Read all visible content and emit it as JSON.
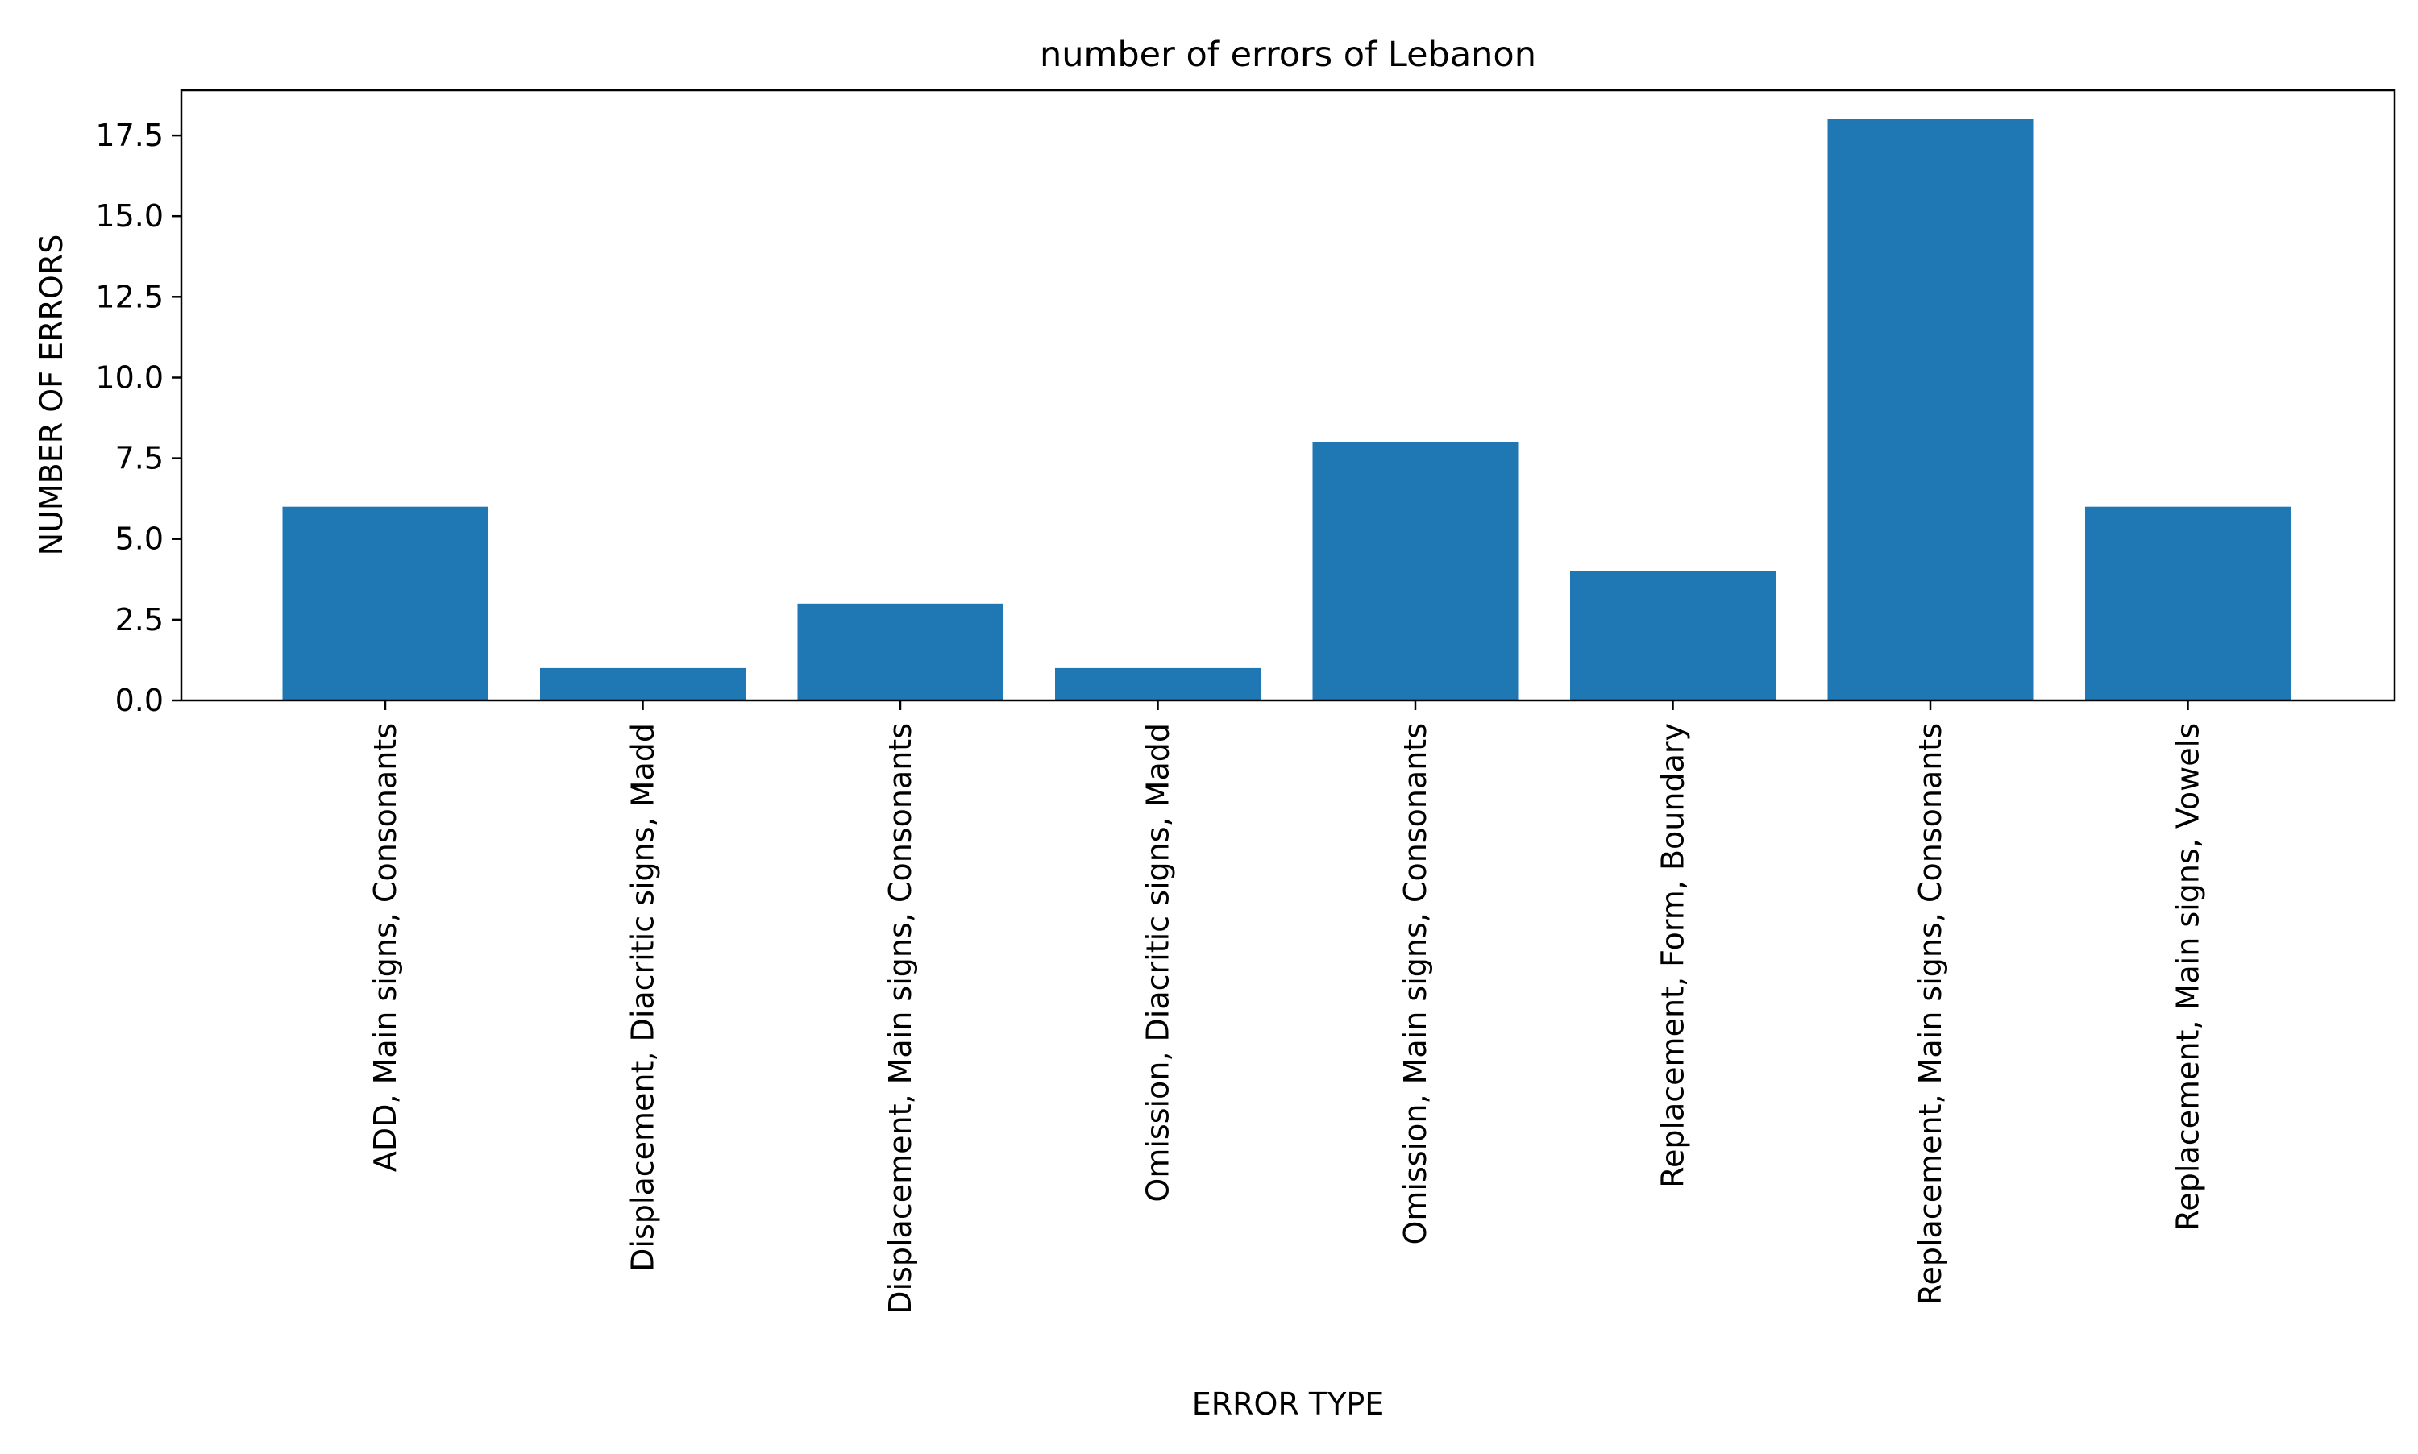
{
  "chart_data": {
    "type": "bar",
    "title": "number of errors of Lebanon",
    "xlabel": "ERROR TYPE",
    "ylabel": "NUMBER OF ERRORS",
    "categories": [
      "ADD, Main signs, Consonants",
      "Displacement, Diacritic signs, Madd",
      "Displacement, Main signs, Consonants",
      "Omission, Diacritic signs, Madd",
      "Omission, Main signs, Consonants",
      "Replacement, Form, Boundary",
      "Replacement, Main signs, Consonants",
      "Replacement, Main signs, Vowels"
    ],
    "values": [
      6,
      1,
      3,
      1,
      8,
      4,
      18,
      6
    ],
    "ylim": [
      0,
      18.9
    ],
    "yticks": [
      "0.0",
      "2.5",
      "5.0",
      "7.5",
      "10.0",
      "12.5",
      "15.0",
      "17.5"
    ],
    "grid": false,
    "legend": "none",
    "colors": {
      "bar": "#1f77b4",
      "axes": "#000000",
      "background": "#ffffff"
    }
  }
}
